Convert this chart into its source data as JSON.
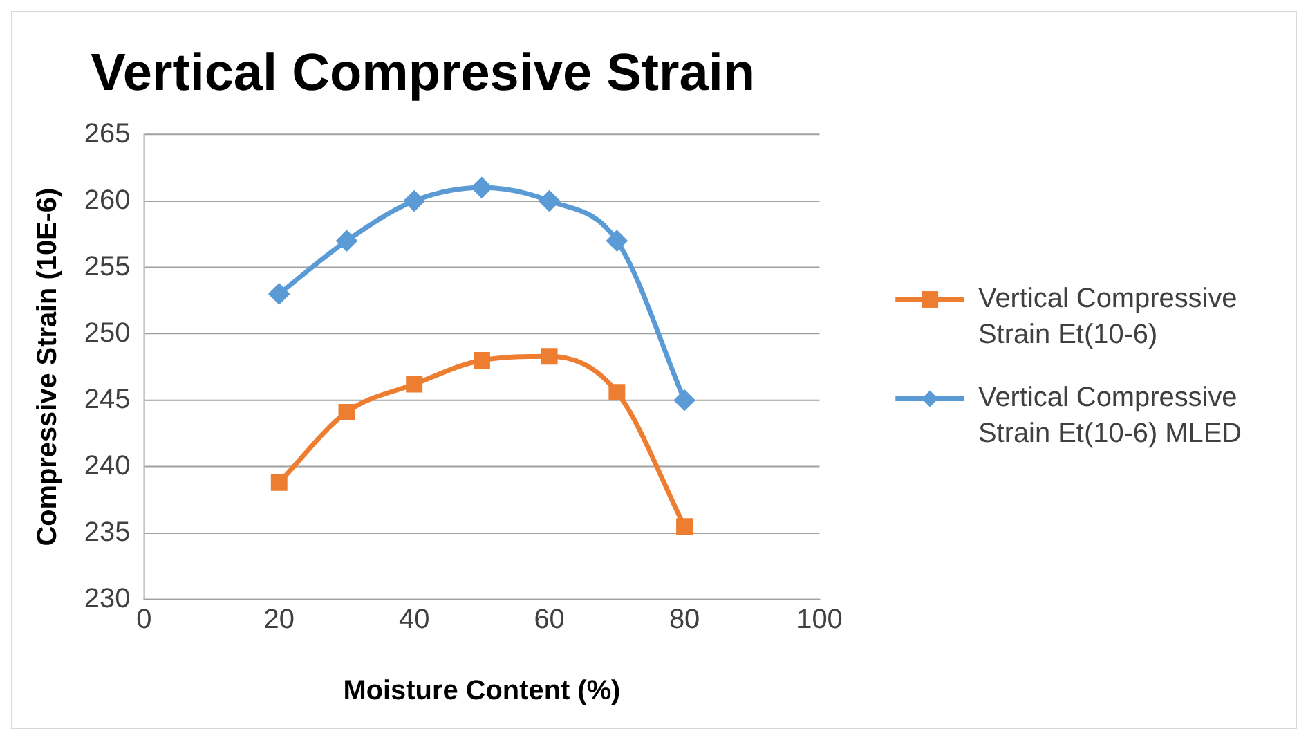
{
  "chart_data": {
    "type": "line",
    "title": "Vertical Compresive Strain",
    "xlabel": "Moisture Content (%)",
    "ylabel": "Compressive Strain (10E-6)",
    "x": [
      20,
      30,
      40,
      50,
      60,
      70,
      80
    ],
    "series": [
      {
        "name": "Vertical Compressive Strain Et(10-6)",
        "color": "#ed7d31",
        "marker": "square",
        "values": [
          238.8,
          244.1,
          246.2,
          248.0,
          248.3,
          245.6,
          235.5
        ]
      },
      {
        "name": "Vertical Compressive Strain Et(10-6) MLED",
        "color": "#5b9bd5",
        "marker": "diamond",
        "values": [
          253,
          257,
          260,
          261,
          260,
          257,
          245
        ]
      }
    ],
    "xlim": [
      0,
      100
    ],
    "xticks": [
      0,
      20,
      40,
      60,
      80,
      100
    ],
    "ylim": [
      230,
      265
    ],
    "yticks": [
      230,
      235,
      240,
      245,
      250,
      255,
      260,
      265
    ],
    "grid": "y",
    "legend": "right",
    "line_style": "solid"
  }
}
